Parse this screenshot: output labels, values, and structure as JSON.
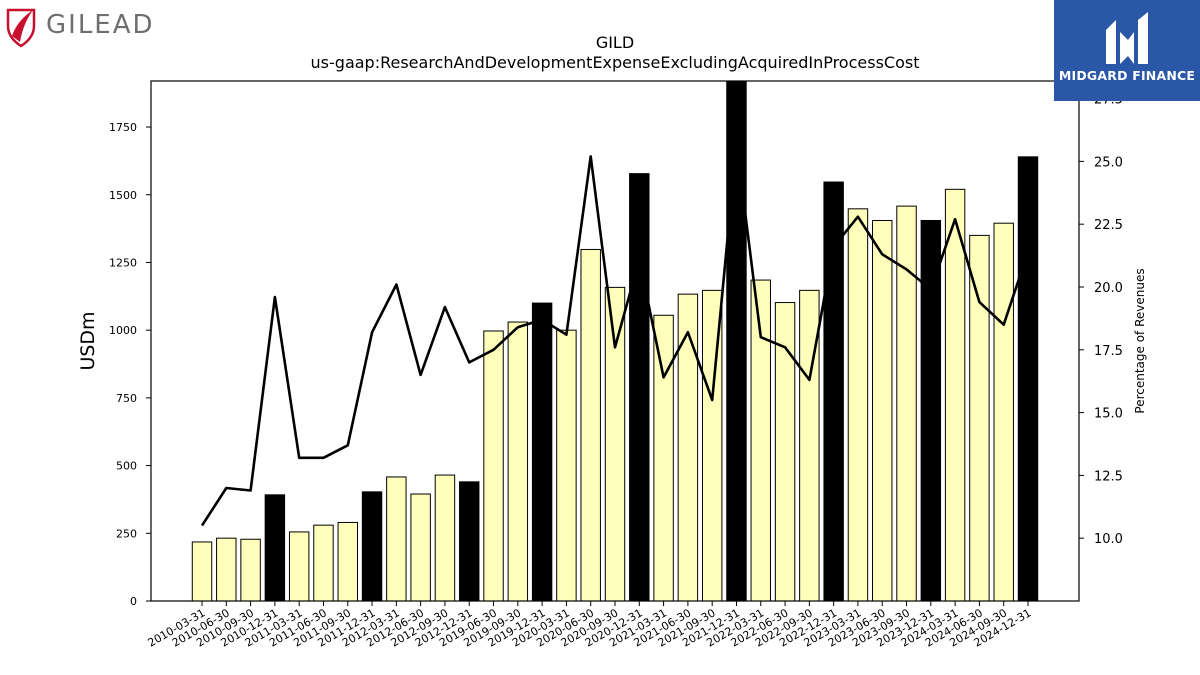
{
  "logos": {
    "left_brand": "GILEAD",
    "right_brand": "MIDGARD FINANCE"
  },
  "chart_data": {
    "type": "bar",
    "title": "GILD",
    "subtitle": "us-gaap:ResearchAndDevelopmentExpenseExcludingAcquiredInProcessCost",
    "ylabel": "USDm",
    "y2label": "Percentage of Revenues",
    "ylim": [
      0,
      1920
    ],
    "y2lim": [
      7.5,
      28.2
    ],
    "yticks": [
      0,
      250,
      500,
      750,
      1000,
      1250,
      1500,
      1750
    ],
    "y2ticks": [
      "10.0",
      "12.5",
      "15.0",
      "17.5",
      "20.0",
      "22.5",
      "25.0",
      "27.5"
    ],
    "categories": [
      "2010-03-31",
      "2010-06-30",
      "2010-09-30",
      "2010-12-31",
      "2011-03-31",
      "2011-06-30",
      "2011-09-30",
      "2011-12-31",
      "2012-03-31",
      "2012-06-30",
      "2012-09-30",
      "2012-12-31",
      "2019-06-30",
      "2019-09-30",
      "2019-12-31",
      "2020-03-31",
      "2020-06-30",
      "2020-09-30",
      "2020-12-31",
      "2021-03-31",
      "2021-06-30",
      "2021-09-30",
      "2021-12-31",
      "2022-03-31",
      "2022-06-30",
      "2022-09-30",
      "2022-12-31",
      "2023-03-31",
      "2023-06-30",
      "2023-09-30",
      "2023-12-31",
      "2024-03-31",
      "2024-06-30",
      "2024-09-30",
      "2024-12-31"
    ],
    "series": [
      {
        "kind": "bar",
        "values": [
          218,
          232,
          228,
          392,
          255,
          280,
          290,
          403,
          458,
          395,
          465,
          440,
          997,
          1030,
          1100,
          1000,
          1298,
          1158,
          1578,
          1055,
          1133,
          1147,
          1930,
          1185,
          1102,
          1147,
          1547,
          1448,
          1405,
          1458,
          1405,
          1520,
          1350,
          1395,
          1640
        ]
      },
      {
        "kind": "line",
        "axis": "right",
        "values": [
          10.5,
          12.0,
          11.9,
          19.6,
          13.2,
          13.2,
          13.7,
          18.2,
          20.1,
          16.5,
          19.2,
          17.0,
          17.5,
          18.4,
          18.7,
          18.1,
          25.2,
          17.6,
          21.1,
          16.4,
          18.2,
          15.5,
          25.7,
          18.0,
          17.6,
          16.3,
          21.6,
          22.8,
          21.3,
          20.7,
          19.9,
          22.7,
          19.4,
          18.5,
          21.4
        ]
      }
    ],
    "bar_colors": {
      "quarter": "#ffffbb",
      "year_end": "#000000"
    },
    "line_color": "#000000",
    "grid": false,
    "legend": "none"
  }
}
